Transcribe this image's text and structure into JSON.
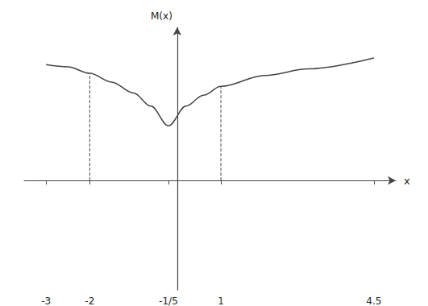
{
  "chart_data": {
    "type": "line",
    "x": [
      -3,
      -2.5,
      -2,
      -1.5,
      -1,
      -0.6,
      -0.2,
      0.2,
      0.6,
      1,
      2,
      3,
      4.5
    ],
    "values": [
      5.3,
      5.2,
      4.9,
      4.5,
      4.0,
      3.4,
      2.5,
      3.4,
      3.9,
      4.3,
      4.8,
      5.1,
      5.6
    ],
    "color": "#444444",
    "x_label": "x",
    "y_label": "M(x)",
    "xlim": [
      -3.5,
      5
    ],
    "xticks": [
      -3,
      -2,
      {
        "value": -0.2,
        "label": "-1/5"
      },
      1,
      4.5
    ],
    "ylim": [
      -5,
      7
    ],
    "tick_labels": "x",
    "grid": false,
    "guides": [
      -2,
      1
    ]
  }
}
